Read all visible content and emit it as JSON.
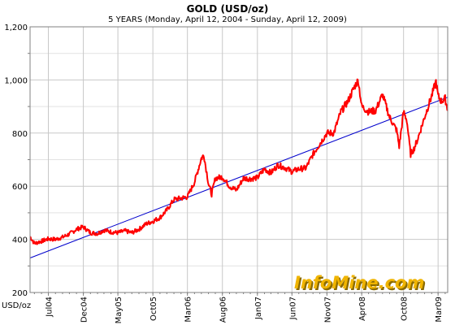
{
  "chart_data": {
    "type": "line",
    "title": "GOLD (USD/oz)",
    "subtitle": "5 YEARS (Monday, April 12, 2004  -  Sunday, April 12, 2009)",
    "ylabel": "USD/oz",
    "ylim": [
      200,
      1200
    ],
    "yticks": [
      "200",
      "400",
      "600",
      "800",
      "1,000",
      "1,200"
    ],
    "xlim": [
      "2004-04-12",
      "2009-04-12"
    ],
    "xticks": [
      {
        "label": "Jul04",
        "date": "2004-07-01"
      },
      {
        "label": "Dec04",
        "date": "2004-12-01"
      },
      {
        "label": "May05",
        "date": "2005-05-01"
      },
      {
        "label": "Oct05",
        "date": "2005-10-01"
      },
      {
        "label": "Mar06",
        "date": "2006-03-01"
      },
      {
        "label": "Aug06",
        "date": "2006-08-01"
      },
      {
        "label": "Jan07",
        "date": "2007-01-01"
      },
      {
        "label": "Jun07",
        "date": "2007-06-01"
      },
      {
        "label": "Nov07",
        "date": "2007-11-01"
      },
      {
        "label": "Apr08",
        "date": "2008-04-01"
      },
      {
        "label": "Oct08",
        "date": "2008-10-01"
      },
      {
        "label": "Mar09",
        "date": "2009-03-01"
      }
    ],
    "grid": true,
    "series": [
      {
        "type": "line",
        "color": "#ff0000",
        "points": [
          [
            "2004-04-12",
            410
          ],
          [
            "2004-05-01",
            385
          ],
          [
            "2004-06-01",
            393
          ],
          [
            "2004-07-01",
            402
          ],
          [
            "2004-08-01",
            400
          ],
          [
            "2004-09-01",
            408
          ],
          [
            "2004-10-01",
            420
          ],
          [
            "2004-11-01",
            438
          ],
          [
            "2004-12-01",
            447
          ],
          [
            "2005-01-01",
            425
          ],
          [
            "2005-02-01",
            422
          ],
          [
            "2005-03-01",
            435
          ],
          [
            "2005-04-01",
            428
          ],
          [
            "2005-05-01",
            425
          ],
          [
            "2005-06-01",
            432
          ],
          [
            "2005-07-01",
            425
          ],
          [
            "2005-08-01",
            438
          ],
          [
            "2005-09-01",
            458
          ],
          [
            "2005-10-01",
            468
          ],
          [
            "2005-11-01",
            482
          ],
          [
            "2005-12-01",
            510
          ],
          [
            "2006-01-01",
            550
          ],
          [
            "2006-02-01",
            555
          ],
          [
            "2006-03-01",
            560
          ],
          [
            "2006-04-01",
            615
          ],
          [
            "2006-05-01",
            705
          ],
          [
            "2006-05-12",
            718
          ],
          [
            "2006-06-01",
            610
          ],
          [
            "2006-06-15",
            570
          ],
          [
            "2006-07-01",
            630
          ],
          [
            "2006-08-01",
            635
          ],
          [
            "2006-09-01",
            600
          ],
          [
            "2006-10-01",
            585
          ],
          [
            "2006-11-01",
            630
          ],
          [
            "2006-12-01",
            628
          ],
          [
            "2007-01-01",
            632
          ],
          [
            "2007-02-01",
            665
          ],
          [
            "2007-03-01",
            650
          ],
          [
            "2007-04-01",
            680
          ],
          [
            "2007-05-01",
            670
          ],
          [
            "2007-06-01",
            655
          ],
          [
            "2007-07-01",
            665
          ],
          [
            "2007-08-01",
            668
          ],
          [
            "2007-09-01",
            720
          ],
          [
            "2007-10-01",
            760
          ],
          [
            "2007-11-01",
            800
          ],
          [
            "2007-12-01",
            800
          ],
          [
            "2008-01-01",
            880
          ],
          [
            "2008-02-01",
            920
          ],
          [
            "2008-03-01",
            975
          ],
          [
            "2008-03-17",
            1000
          ],
          [
            "2008-04-01",
            900
          ],
          [
            "2008-05-01",
            880
          ],
          [
            "2008-06-01",
            885
          ],
          [
            "2008-07-01",
            945
          ],
          [
            "2008-08-01",
            860
          ],
          [
            "2008-09-01",
            810
          ],
          [
            "2008-09-12",
            750
          ],
          [
            "2008-10-01",
            880
          ],
          [
            "2008-10-15",
            850
          ],
          [
            "2008-11-01",
            720
          ],
          [
            "2008-11-15",
            740
          ],
          [
            "2008-12-01",
            775
          ],
          [
            "2009-01-01",
            860
          ],
          [
            "2009-02-01",
            940
          ],
          [
            "2009-02-20",
            995
          ],
          [
            "2009-03-01",
            940
          ],
          [
            "2009-03-15",
            920
          ],
          [
            "2009-04-01",
            930
          ],
          [
            "2009-04-12",
            885
          ]
        ]
      },
      {
        "type": "trend",
        "color": "#0000cc",
        "points": [
          [
            "2004-04-12",
            330
          ],
          [
            "2009-04-12",
            935
          ]
        ]
      }
    ]
  },
  "branding": {
    "logo_text": "InfoMine.com",
    "logo_color": "#f0b400",
    "logo_shadow_color": "#8a6a00"
  }
}
